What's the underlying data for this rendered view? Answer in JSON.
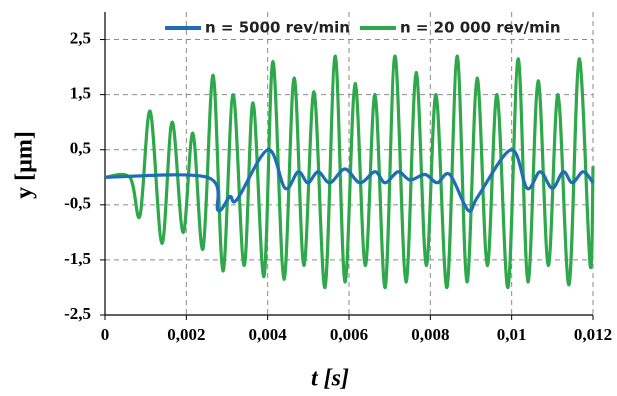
{
  "chart_data": {
    "type": "line",
    "x_label": "t [s]",
    "y_label": "y [µm]",
    "xlim": [
      0,
      0.012
    ],
    "xticks": [
      0,
      {
        "value": 0.002,
        "label": "0,002"
      },
      {
        "value": 0.004,
        "label": "0,004"
      },
      {
        "value": 0.006,
        "label": "0,006"
      },
      {
        "value": 0.008,
        "label": "0,008"
      },
      {
        "value": 0.01,
        "label": "0,01"
      },
      {
        "value": 0.012,
        "label": "0,012"
      }
    ],
    "ylim": [
      -2.5,
      3
    ],
    "yticks": [
      {
        "value": -2.5,
        "label": "-2,5"
      },
      {
        "value": -1.5,
        "label": "-1,5"
      },
      {
        "value": -0.5,
        "label": "-0,5"
      },
      {
        "value": 0.5,
        "label": "0,5"
      },
      {
        "value": 1.5,
        "label": "1,5"
      },
      {
        "value": 2.5,
        "label": "2,5"
      }
    ],
    "grid": true,
    "legend": "top",
    "series": [
      {
        "name": "n = 5000 rev/min",
        "color": "#1f6db3",
        "x": [
          0,
          0.00251,
          0.00278,
          0.00307,
          0.00325,
          0.00401,
          0.00443,
          0.00475,
          0.00499,
          0.00524,
          0.00553,
          0.0059,
          0.00627,
          0.00664,
          0.00689,
          0.00721,
          0.0075,
          0.00787,
          0.00817,
          0.00848,
          0.00893,
          0.00917,
          0.00999,
          0.01038,
          0.0107,
          0.011,
          0.01127,
          0.01149,
          0.01176,
          0.012
        ],
        "values": [
          0,
          0,
          -0.6,
          -0.35,
          -0.4,
          0.5,
          -0.2,
          0.1,
          -0.1,
          0.1,
          -0.1,
          0.15,
          -0.1,
          0.1,
          -0.1,
          0.1,
          -0.05,
          0.05,
          -0.1,
          0.05,
          -0.6,
          -0.35,
          0.5,
          -0.2,
          0.1,
          -0.2,
          0.1,
          -0.1,
          0.1,
          -0.1
        ]
      },
      {
        "name": "n = 20 000 rev/min",
        "color": "#2ea84a",
        "x": [
          0,
          0.00061,
          0.00086,
          0.00111,
          0.0014,
          0.00165,
          0.00192,
          0.00216,
          0.00241,
          0.00266,
          0.0029,
          0.00315,
          0.00342,
          0.00364,
          0.00391,
          0.00413,
          0.0044,
          0.00465,
          0.00489,
          0.00514,
          0.00541,
          0.00566,
          0.0059,
          0.00615,
          0.0064,
          0.00664,
          0.00689,
          0.00713,
          0.0074,
          0.00765,
          0.0079,
          0.00814,
          0.00841,
          0.00866,
          0.0089,
          0.00915,
          0.0094,
          0.00964,
          0.00991,
          0.01016,
          0.0104,
          0.01065,
          0.0109,
          0.01114,
          0.01141,
          0.01166,
          0.01193,
          0.012
        ],
        "values": [
          0,
          0,
          -0.7,
          1.2,
          -1.2,
          1.0,
          -1.0,
          0.8,
          -1.3,
          1.85,
          -1.7,
          1.5,
          -1.6,
          1.35,
          -1.8,
          2.1,
          -1.85,
          1.8,
          -1.6,
          1.55,
          -2.0,
          2.2,
          -1.9,
          1.7,
          -1.6,
          1.5,
          -2.0,
          2.2,
          -1.9,
          1.9,
          -1.6,
          1.5,
          -2.0,
          2.2,
          -1.9,
          1.8,
          -1.6,
          1.5,
          -2.0,
          2.15,
          -1.9,
          1.75,
          -1.6,
          1.5,
          -1.95,
          2.15,
          -1.6,
          0.2
        ]
      }
    ]
  }
}
